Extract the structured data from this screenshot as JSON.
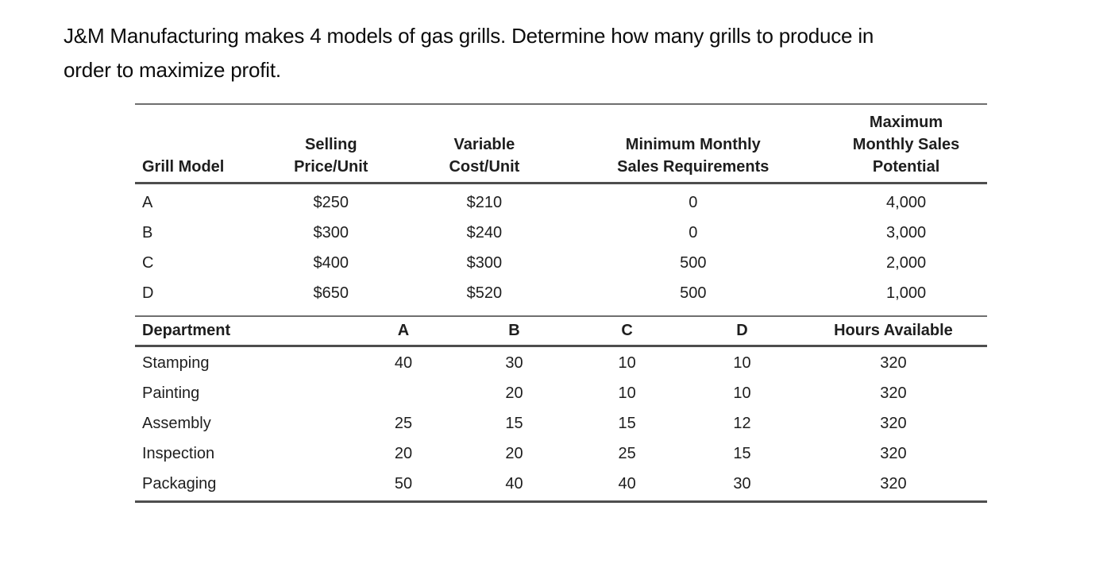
{
  "intro": {
    "line1": "J&M Manufacturing makes 4 models of gas grills. Determine how many grills to produce in",
    "line2": "order to maximize profit."
  },
  "grill_table": {
    "headers": [
      {
        "lines": [
          "Grill Model"
        ]
      },
      {
        "lines": [
          "Selling",
          "Price/Unit"
        ]
      },
      {
        "lines": [
          "Variable",
          "Cost/Unit"
        ]
      },
      {
        "lines": [
          "Minimum Monthly",
          "Sales Requirements"
        ]
      },
      {
        "lines": [
          "Maximum",
          "Monthly Sales",
          "Potential"
        ]
      }
    ],
    "rows": [
      {
        "model": "A",
        "selling_price": "$250",
        "variable_cost": "$210",
        "min_monthly_sales": "0",
        "max_monthly_sales": "4,000"
      },
      {
        "model": "B",
        "selling_price": "$300",
        "variable_cost": "$240",
        "min_monthly_sales": "0",
        "max_monthly_sales": "3,000"
      },
      {
        "model": "C",
        "selling_price": "$400",
        "variable_cost": "$300",
        "min_monthly_sales": "500",
        "max_monthly_sales": "2,000"
      },
      {
        "model": "D",
        "selling_price": "$650",
        "variable_cost": "$520",
        "min_monthly_sales": "500",
        "max_monthly_sales": "1,000"
      }
    ]
  },
  "dept_table": {
    "headers": [
      "Department",
      "A",
      "B",
      "C",
      "D",
      "Hours Available"
    ],
    "rows": [
      {
        "department": "Stamping",
        "a": "40",
        "b": "30",
        "c": "10",
        "d": "10",
        "hours": "320"
      },
      {
        "department": "Painting",
        "a": "",
        "b": "20",
        "c": "10",
        "d": "10",
        "hours": "320"
      },
      {
        "department": "Assembly",
        "a": "25",
        "b": "15",
        "c": "15",
        "d": "12",
        "hours": "320"
      },
      {
        "department": "Inspection",
        "a": "20",
        "b": "20",
        "c": "25",
        "d": "15",
        "hours": "320"
      },
      {
        "department": "Packaging",
        "a": "50",
        "b": "40",
        "c": "40",
        "d": "30",
        "hours": "320"
      }
    ]
  }
}
